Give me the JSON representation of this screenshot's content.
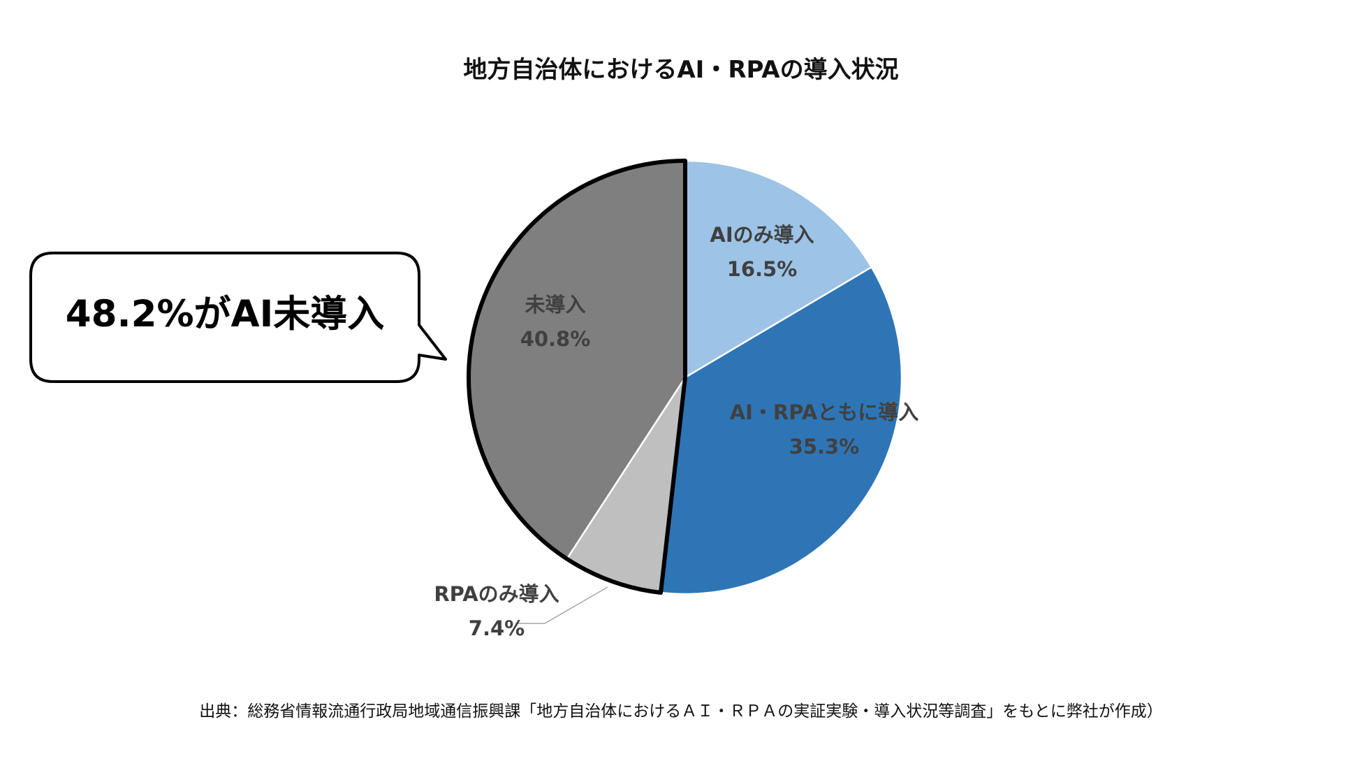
{
  "chart_data": {
    "type": "pie",
    "title": "地方自治体におけるAI・RPAの導入状況",
    "start": "12 o'clock",
    "direction": "clockwise",
    "slices": [
      {
        "label": "AIのみ導入",
        "value": 16.5,
        "value_label": "16.5%",
        "color": "#9dc3e6"
      },
      {
        "label": "AI・RPAともに導入",
        "value": 35.3,
        "value_label": "35.3%",
        "color": "#2e75b6"
      },
      {
        "label": "RPAのみ導入",
        "value": 7.4,
        "value_label": "7.4%",
        "color": "#bfbfbf"
      },
      {
        "label": "未導入",
        "value": 40.8,
        "value_label": "40.8%",
        "color": "#7f7f7f"
      }
    ],
    "highlight": "RPAのみ導入 + 未導入 (bold outline)"
  },
  "callout": {
    "text": "48.2%がAI未導入"
  },
  "source": "出典：総務省情報流通行政局地域通信振興課「地方自治体におけるＡＩ・ＲＰＡの実証実験・導入状況等調査」をもとに弊社が作成）"
}
